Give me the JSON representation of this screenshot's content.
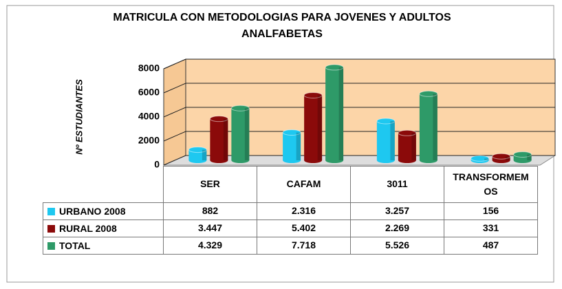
{
  "chart_data": {
    "type": "bar3d",
    "title": "MATRICULA CON METODOLOGIAS PARA JOVENES Y ADULTOS ANALFABETAS",
    "y_label": "Nº ESTUDIANTES",
    "categories": [
      "SER",
      "CAFAM",
      "3011",
      "TRANSFORMEMOS"
    ],
    "series": [
      {
        "name": "URBANO 2008",
        "color": "#1ec8f0",
        "values": [
          882,
          2316,
          3257,
          156
        ],
        "value_labels": [
          "882",
          "2.316",
          "3.257",
          "156"
        ]
      },
      {
        "name": "RURAL 2008",
        "color": "#8b0a0a",
        "values": [
          3447,
          5402,
          2269,
          331
        ],
        "value_labels": [
          "3.447",
          "5.402",
          "2.269",
          "331"
        ]
      },
      {
        "name": "TOTAL",
        "color": "#2e9a68",
        "values": [
          4329,
          7718,
          5526,
          487
        ],
        "value_labels": [
          "4.329",
          "7.718",
          "5.526",
          "487"
        ]
      }
    ],
    "ylim": [
      0,
      8000
    ],
    "yticks": [
      0,
      2000,
      4000,
      6000,
      8000
    ],
    "grid": true,
    "data_table": true
  }
}
